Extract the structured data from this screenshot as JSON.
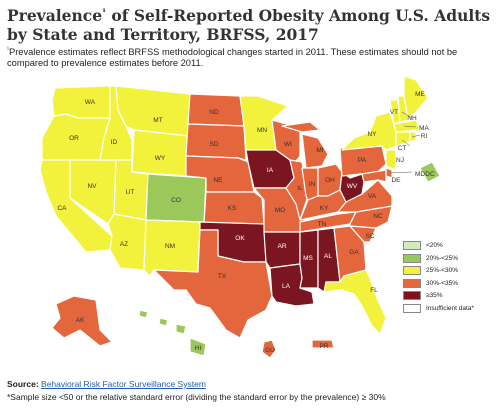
{
  "title_main": "Prevalence",
  "title_sup": "¹",
  "title_rest": " of Self-Reported Obesity Among U.S. Adults by State and Territory, BRFSS, 2017",
  "note_sup": "¹",
  "note_text": "Prevalence estimates reflect BRFSS methodological changes started in 2011. These estimates should not be compared to prevalence estimates before 2011.",
  "legend": [
    {
      "label": "<20%",
      "color": "#d2ebbe"
    },
    {
      "label": "20%-<25%",
      "color": "#9ac85a"
    },
    {
      "label": "25%-<30%",
      "color": "#f2f23c"
    },
    {
      "label": "30%-<35%",
      "color": "#e3663d"
    },
    {
      "label": "≥35%",
      "color": "#7b1621"
    },
    {
      "label": "Insufficient data*",
      "color": "#ffffff"
    }
  ],
  "source_label": "Source:",
  "source_link": "Behavioral Risk Factor Surveillance System",
  "footnote": "*Sample size <50 or the relative standard error (dividing the standard error by the prevalence) ≥ 30%",
  "states": {
    "WA": {
      "category": "25%-<30%"
    },
    "OR": {
      "category": "25%-<30%"
    },
    "CA": {
      "category": "25%-<30%"
    },
    "NV": {
      "category": "25%-<30%"
    },
    "ID": {
      "category": "25%-<30%"
    },
    "MT": {
      "category": "25%-<30%"
    },
    "WY": {
      "category": "25%-<30%"
    },
    "UT": {
      "category": "25%-<30%"
    },
    "AZ": {
      "category": "25%-<30%"
    },
    "CO": {
      "category": "20%-<25%"
    },
    "NM": {
      "category": "25%-<30%"
    },
    "ND": {
      "category": "30%-<35%"
    },
    "SD": {
      "category": "30%-<35%"
    },
    "NE": {
      "category": "30%-<35%"
    },
    "KS": {
      "category": "30%-<35%"
    },
    "OK": {
      "category": "≥35%"
    },
    "TX": {
      "category": "30%-<35%"
    },
    "MN": {
      "category": "25%-<30%"
    },
    "IA": {
      "category": "≥35%"
    },
    "MO": {
      "category": "30%-<35%"
    },
    "AR": {
      "category": "≥35%"
    },
    "LA": {
      "category": "≥35%"
    },
    "WI": {
      "category": "30%-<35%"
    },
    "IL": {
      "category": "30%-<35%"
    },
    "MI": {
      "category": "30%-<35%"
    },
    "IN": {
      "category": "30%-<35%"
    },
    "OH": {
      "category": "30%-<35%"
    },
    "KY": {
      "category": "30%-<35%"
    },
    "TN": {
      "category": "30%-<35%"
    },
    "MS": {
      "category": "≥35%"
    },
    "AL": {
      "category": "≥35%"
    },
    "GA": {
      "category": "30%-<35%"
    },
    "FL": {
      "category": "25%-<30%"
    },
    "SC": {
      "category": "30%-<35%"
    },
    "NC": {
      "category": "30%-<35%"
    },
    "VA": {
      "category": "30%-<35%"
    },
    "WV": {
      "category": "≥35%"
    },
    "PA": {
      "category": "30%-<35%"
    },
    "NY": {
      "category": "25%-<30%"
    },
    "VT": {
      "category": "25%-<30%"
    },
    "NH": {
      "category": "25%-<30%"
    },
    "ME": {
      "category": "25%-<30%"
    },
    "MA": {
      "category": "25%-<30%"
    },
    "RI": {
      "category": "25%-<30%"
    },
    "CT": {
      "category": "25%-<30%"
    },
    "NJ": {
      "category": "25%-<30%"
    },
    "DE": {
      "category": "30%-<35%"
    },
    "MD": {
      "category": "30%-<35%"
    },
    "DC": {
      "category": "20%-<25%"
    },
    "AK": {
      "category": "30%-<35%"
    },
    "HI": {
      "category": "20%-<25%"
    },
    "GU": {
      "category": "30%-<35%"
    },
    "PR": {
      "category": "30%-<35%"
    }
  }
}
